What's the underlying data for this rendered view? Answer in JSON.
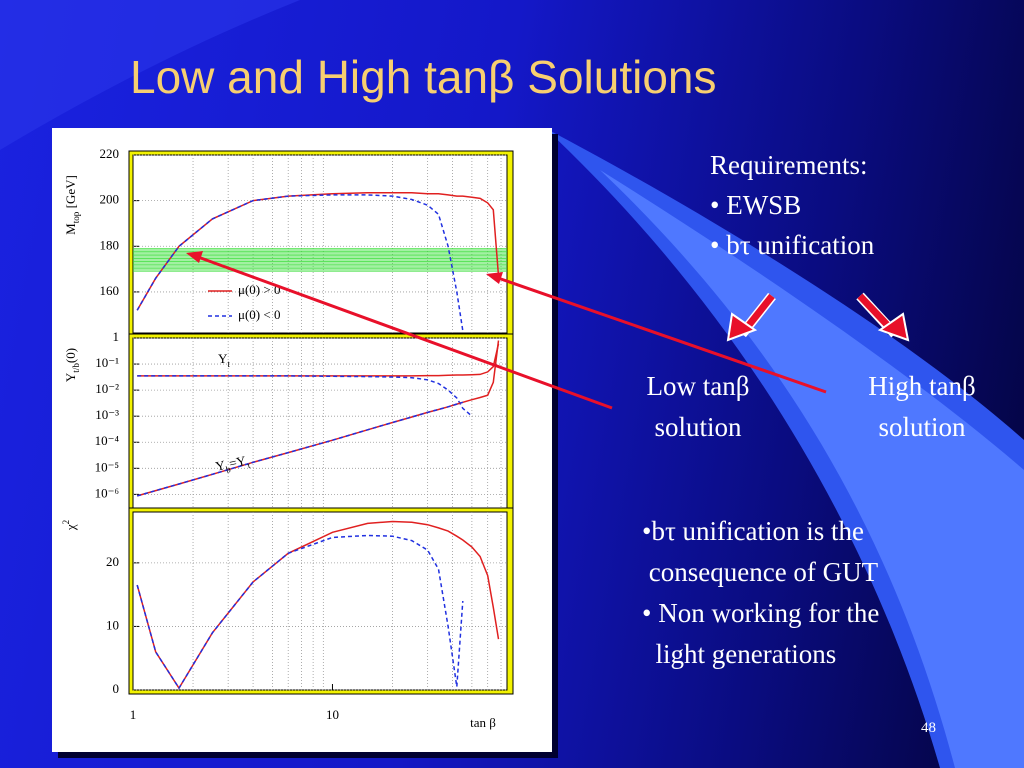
{
  "slide": {
    "title": "Low and High tanβ Solutions",
    "requirements": [
      "Requirements:",
      "• EWSB",
      "• bτ unification"
    ],
    "low": [
      "Low tanβ",
      "solution"
    ],
    "high": [
      "High tanβ",
      "solution"
    ],
    "bullets": [
      "•bτ unification is the",
      " consequence of GUT",
      "• Non working for the",
      "  light generations"
    ],
    "page_number": "48"
  },
  "chart_data": [
    {
      "type": "line",
      "ylabel": [
        {
          "text": "M"
        },
        {
          "text": "top",
          "sub": true
        },
        {
          "text": " [GeV]"
        }
      ],
      "x": [
        1.05,
        1.3,
        1.7,
        2.5,
        4,
        6,
        10,
        15,
        20,
        25,
        30,
        34,
        38,
        42,
        45,
        50,
        55,
        60,
        64,
        68
      ],
      "xlim": [
        1,
        75
      ],
      "xlog": true,
      "xgrid": [
        2,
        3,
        4,
        5,
        6,
        7,
        8,
        9,
        20,
        30,
        40,
        50,
        60,
        70
      ],
      "ylim": [
        142,
        220
      ],
      "yticks": [
        160,
        180,
        200,
        220
      ],
      "grid": true,
      "band": [
        169,
        179
      ],
      "band_color": "#33dd33",
      "series": [
        {
          "name": "μ(0) > 0",
          "color": "#e02020",
          "dash": false,
          "values": [
            152,
            166,
            180,
            192,
            200,
            202,
            203,
            203.5,
            203.5,
            203.5,
            203,
            203,
            202.5,
            202,
            202,
            201.5,
            201,
            199,
            196,
            167
          ]
        },
        {
          "name": "μ(0) < 0",
          "color": "#2030e0",
          "dash": true,
          "values": [
            152,
            166,
            180,
            192,
            200,
            202,
            202.5,
            202.5,
            202,
            200.5,
            198,
            194,
            180,
            160,
            143,
            null,
            null,
            null,
            null,
            null
          ]
        }
      ]
    },
    {
      "type": "line",
      "ylabel": [
        {
          "text": "Y"
        },
        {
          "text": "t/b",
          "sub": true
        },
        {
          "text": "(0)"
        }
      ],
      "x": [
        1.05,
        1.3,
        1.7,
        2.5,
        4,
        6,
        10,
        15,
        20,
        25,
        30,
        34,
        38,
        42,
        45,
        50,
        55,
        60,
        64,
        68
      ],
      "xlim": [
        1,
        75
      ],
      "xlog": true,
      "xgrid": [
        2,
        3,
        4,
        5,
        6,
        7,
        8,
        9,
        20,
        30,
        40,
        50,
        60,
        70
      ],
      "ylim": [
        3e-07,
        1
      ],
      "ylog": true,
      "grid": true,
      "yticks": [
        1,
        {
          "value": 0.1,
          "label": "10⁻¹"
        },
        {
          "value": 0.01,
          "label": "10⁻²"
        },
        {
          "value": 0.001,
          "label": "10⁻³"
        },
        {
          "value": 0.0001,
          "label": "10⁻⁴"
        },
        {
          "value": 1e-05,
          "label": "10⁻⁵"
        },
        {
          "value": 1e-06,
          "label": "10⁻⁶"
        }
      ],
      "annotations": [
        {
          "parts": [
            {
              "text": "Y"
            },
            {
              "text": "t",
              "sub": true
            }
          ]
        },
        {
          "parts": [
            {
              "text": "Y"
            },
            {
              "text": "b",
              "sub": true
            },
            {
              "text": "=Y"
            },
            {
              "text": "τ",
              "sub": true
            }
          ]
        }
      ],
      "series": [
        {
          "color": "#e02020",
          "dash": false,
          "values": [
            0.035,
            0.035,
            0.035,
            0.035,
            0.035,
            0.035,
            0.035,
            0.035,
            0.035,
            0.035,
            0.036,
            0.036,
            0.037,
            0.038,
            0.038,
            0.039,
            0.04,
            0.05,
            0.08,
            0.6
          ]
        },
        {
          "color": "#2030e0",
          "dash": true,
          "values": [
            0.035,
            0.035,
            0.035,
            0.035,
            0.035,
            0.035,
            0.034,
            0.033,
            0.032,
            0.03,
            0.025,
            0.018,
            0.01,
            0.005,
            0.002,
            0.001,
            null,
            null,
            null,
            null
          ]
        },
        {
          "color": "#e02020",
          "dash": false,
          "values": [
            8.7e-07,
            1.4e-06,
            2.5e-06,
            5.9e-06,
            1.7e-05,
            4e-05,
            0.00012,
            0.0003,
            0.00057,
            0.00093,
            0.0014,
            0.0018,
            0.0023,
            0.0029,
            0.0034,
            0.0043,
            0.0052,
            0.0064,
            0.02,
            0.8
          ]
        },
        {
          "color": "#2030e0",
          "dash": true,
          "values": [
            8.7e-07,
            1.4e-06,
            2.5e-06,
            5.9e-06,
            1.7e-05,
            4e-05,
            0.00012,
            0.0003,
            0.00057,
            0.00093,
            0.0014,
            0.0018,
            0.0023,
            0.0029,
            0.0034,
            null,
            null,
            null,
            null,
            null
          ]
        }
      ]
    },
    {
      "type": "line",
      "ylabel": [
        {
          "text": "χ"
        },
        {
          "text": "2",
          "sup": true
        }
      ],
      "x": [
        1.05,
        1.3,
        1.7,
        2.5,
        4,
        6,
        10,
        15,
        20,
        25,
        30,
        34,
        38,
        42,
        45,
        50,
        55,
        60,
        64,
        68
      ],
      "xlim": [
        1,
        75
      ],
      "xlog": true,
      "xticks": [
        1,
        10
      ],
      "xlabel": "tan β",
      "xgrid": [
        2,
        3,
        4,
        5,
        6,
        7,
        8,
        9,
        20,
        30,
        40,
        50,
        60,
        70
      ],
      "ylim": [
        0,
        28
      ],
      "yticks": [
        0,
        10,
        20
      ],
      "grid": true,
      "series": [
        {
          "color": "#e02020",
          "dash": false,
          "values": [
            16.5,
            6,
            0.3,
            9,
            17,
            21.5,
            24.8,
            26.2,
            26.5,
            26.4,
            26,
            25.5,
            25,
            24.2,
            23.6,
            22.5,
            21,
            18,
            13,
            8
          ]
        },
        {
          "color": "#2030e0",
          "dash": true,
          "values": [
            16.5,
            6,
            0.3,
            9,
            17,
            21.5,
            24,
            24.3,
            24.2,
            23.5,
            22,
            19,
            10,
            0.5,
            14,
            null,
            null,
            null,
            null,
            null
          ]
        }
      ]
    }
  ]
}
